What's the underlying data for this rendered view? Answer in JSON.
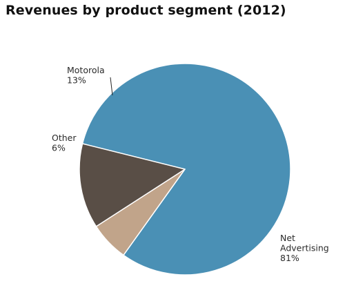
{
  "title": "Revenues by product segment (2012)",
  "chart_data": {
    "type": "pie",
    "title": "Revenues by product segment (2012)",
    "slices": [
      {
        "name": "Net Advertising",
        "label_lines": [
          "Net",
          "Advertising"
        ],
        "percent_label": "81%",
        "value": 81,
        "color": "#4a90b5"
      },
      {
        "name": "Other",
        "label_lines": [
          "Other"
        ],
        "percent_label": "6%",
        "value": 6,
        "color": "#c1a48a"
      },
      {
        "name": "Motorola",
        "label_lines": [
          "Motorola"
        ],
        "percent_label": "13%",
        "value": 13,
        "color": "#594e46"
      }
    ],
    "legend": "none"
  }
}
